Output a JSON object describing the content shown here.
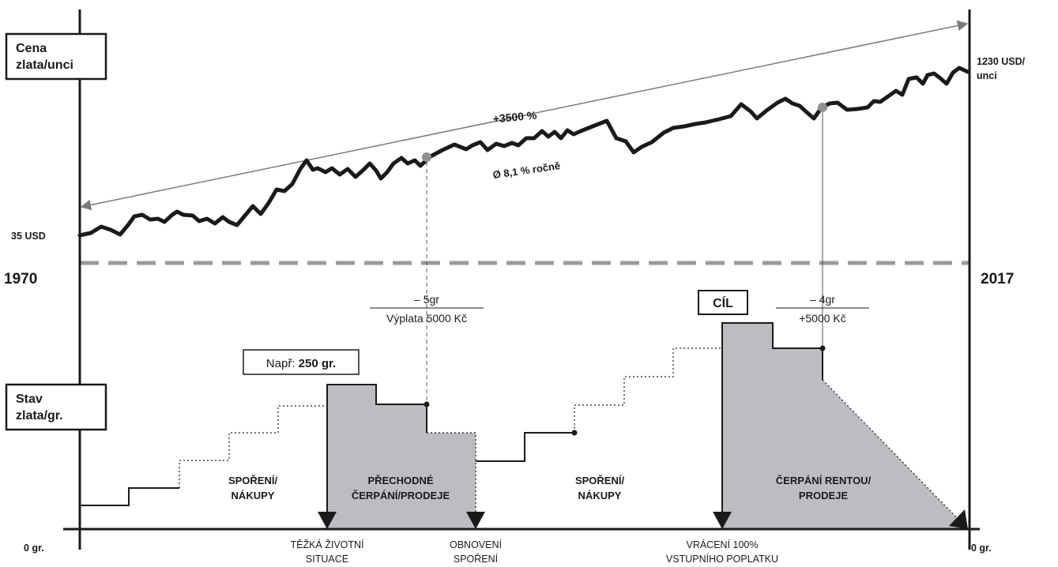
{
  "colors": {
    "line": "#1a1a1a",
    "shade": "#bcbdc1",
    "dashed": "#9a9a9a",
    "arrow": "#7a7a7a",
    "dot": "#909090"
  },
  "labels": {
    "price_box_line1": "Cena",
    "price_box_line2": "zlata/unci",
    "stock_box_line1": "Stav",
    "stock_box_line2": "zlata/gr.",
    "start_price": "35 USD",
    "end_price_line1": "1230 USD/",
    "end_price_line2": "unci",
    "year_start": "1970",
    "year_end": "2017",
    "growth_total": "+3500 %",
    "growth_annual": "Ø 8,1 % ročně",
    "withdraw1_top": "– 5gr",
    "withdraw1_bottom": "Výplata 5000 Kč",
    "withdraw2_top": "– 4gr",
    "withdraw2_bottom": "+5000 Kč",
    "goal": "CÍL",
    "example_prefix": "Např: ",
    "example_value": "250 gr.",
    "zero_left": "0 gr.",
    "zero_right": "0 gr."
  },
  "phases": [
    {
      "line1": "SPOŘENÍ/",
      "line2": "NÁKUPY"
    },
    {
      "line1": "PŘECHODNÉ",
      "line2": "ČERPÁNÍ/PRODEJE"
    },
    {
      "line1": "SPOŘENÍ/",
      "line2": "NÁKUPY"
    },
    {
      "line1": "ČERPÁNÍ RENTOU/",
      "line2": "PRODEJE"
    }
  ],
  "events": [
    {
      "line1": "TĚŽKÁ ŽIVOTNÍ",
      "line2": "SITUACE"
    },
    {
      "line1": "OBNOVENÍ",
      "line2": "SPOŘENÍ"
    },
    {
      "line1": "VRÁCENÍ 100%",
      "line2": "VSTUPNÍHO POPLATKU"
    }
  ]
}
